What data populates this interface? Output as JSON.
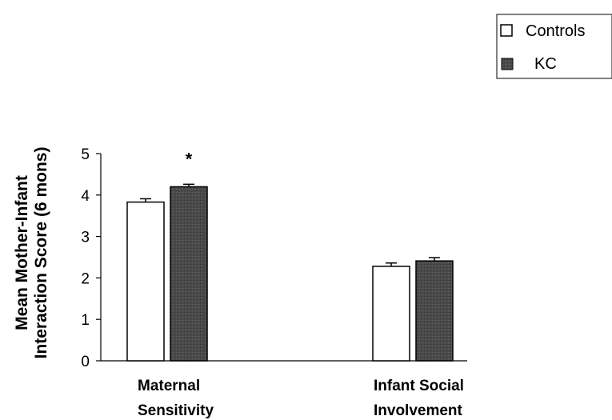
{
  "chart_data": {
    "type": "bar",
    "categories": [
      [
        "Maternal",
        "Sensitivity"
      ],
      [
        "Infant Social",
        "Involvement"
      ]
    ],
    "series": [
      {
        "name": "Controls",
        "values": [
          3.83,
          2.28
        ],
        "errors": [
          0.08,
          0.08
        ],
        "color": "#ffffff"
      },
      {
        "name": "KC",
        "values": [
          4.2,
          2.41
        ],
        "errors": [
          0.06,
          0.08
        ],
        "color": "#4a4a4a"
      }
    ],
    "ylabel": [
      "Mean Mother-Infant",
      "Interaction Score (6 mons)"
    ],
    "yticks": [
      0,
      1,
      2,
      3,
      4,
      5
    ],
    "ylim": [
      0,
      5
    ],
    "annotations": [
      {
        "category": 0,
        "series": 1,
        "text": "*"
      }
    ],
    "legend": {
      "placement": "top-right",
      "border": true
    },
    "grid": false
  }
}
